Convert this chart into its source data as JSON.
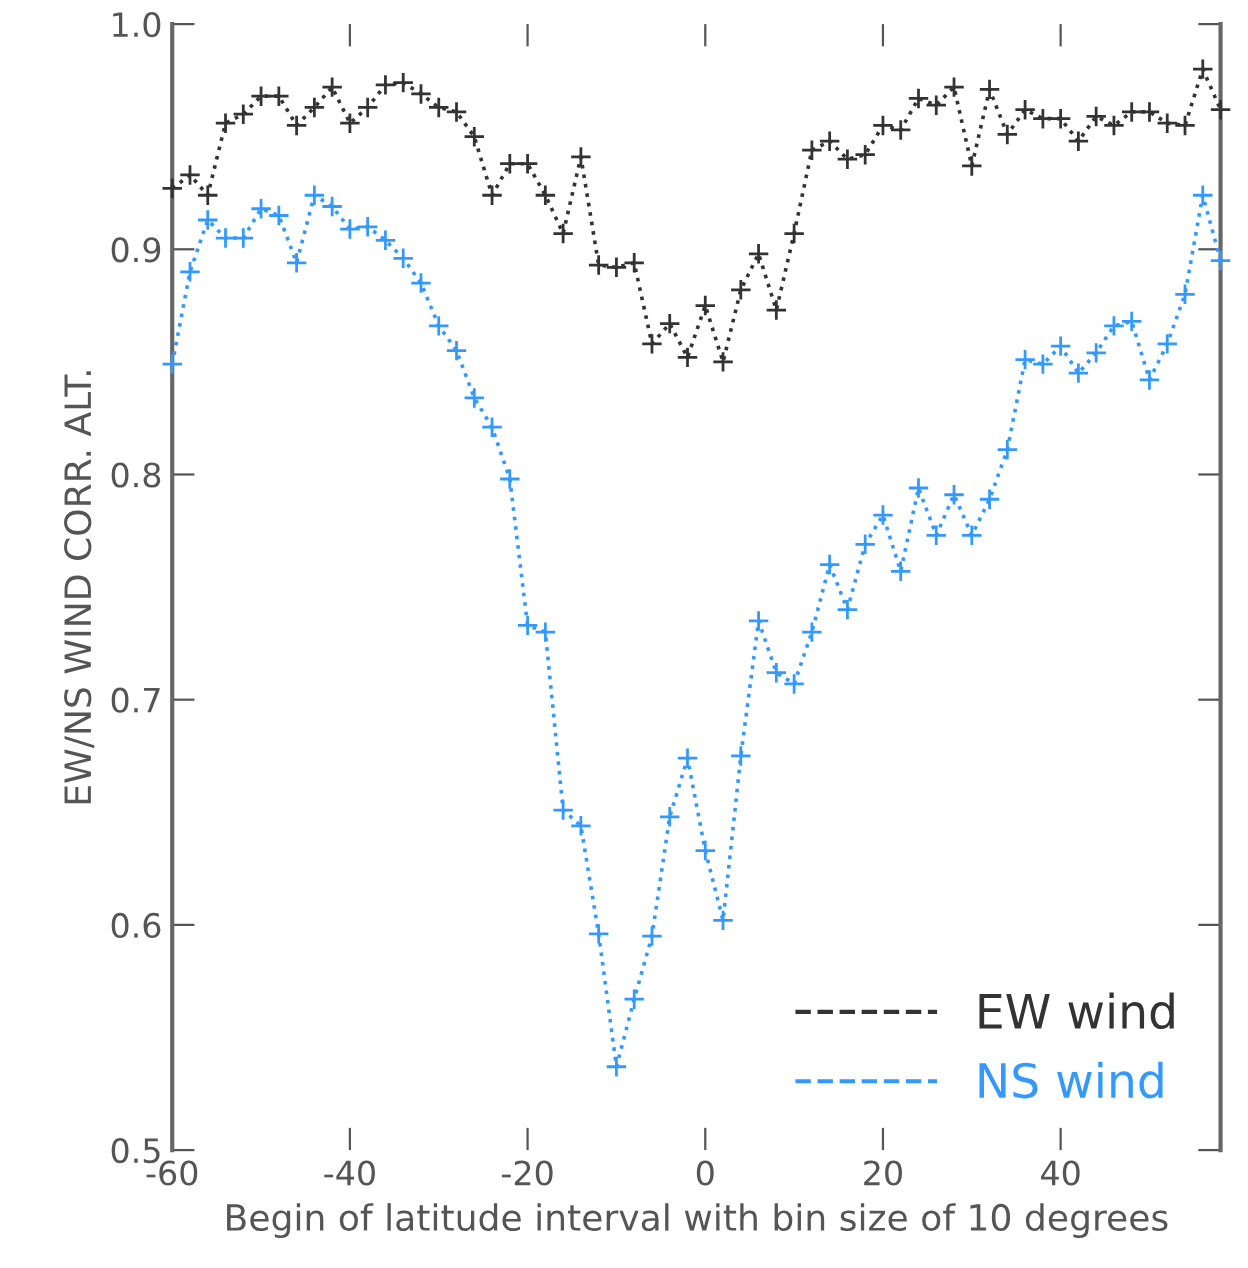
{
  "chart_data": {
    "type": "line",
    "xlabel": "Begin of latitude interval with bin size of 10 degrees",
    "ylabel": "EW/NS WIND CORR. ALT.",
    "x": [
      -60,
      -58,
      -56,
      -54,
      -52,
      -50,
      -48,
      -46,
      -44,
      -42,
      -40,
      -38,
      -36,
      -34,
      -32,
      -30,
      -28,
      -26,
      -24,
      -22,
      -20,
      -18,
      -16,
      -14,
      -12,
      -10,
      -8,
      -6,
      -4,
      -2,
      0,
      2,
      4,
      6,
      8,
      10,
      12,
      14,
      16,
      18,
      20,
      22,
      24,
      26,
      28,
      30,
      32,
      34,
      36,
      38,
      40,
      42,
      44,
      46,
      48,
      50,
      52,
      54,
      56,
      58
    ],
    "series": [
      {
        "name": "EW wind",
        "color": "#333333",
        "values": [
          0.927,
          0.933,
          0.924,
          0.956,
          0.96,
          0.968,
          0.968,
          0.955,
          0.963,
          0.972,
          0.956,
          0.963,
          0.973,
          0.974,
          0.969,
          0.963,
          0.961,
          0.95,
          0.924,
          0.938,
          0.938,
          0.924,
          0.907,
          0.941,
          0.893,
          0.892,
          0.894,
          0.858,
          0.867,
          0.852,
          0.875,
          0.85,
          0.882,
          0.898,
          0.873,
          0.907,
          0.944,
          0.948,
          0.94,
          0.942,
          0.955,
          0.953,
          0.967,
          0.964,
          0.972,
          0.937,
          0.971,
          0.951,
          0.962,
          0.958,
          0.958,
          0.948,
          0.959,
          0.955,
          0.961,
          0.961,
          0.956,
          0.955,
          0.98,
          0.962
        ]
      },
      {
        "name": "NS wind",
        "color": "#3399ff",
        "values": [
          0.849,
          0.89,
          0.913,
          0.905,
          0.905,
          0.918,
          0.915,
          0.894,
          0.924,
          0.919,
          0.909,
          0.91,
          0.904,
          0.896,
          0.885,
          0.866,
          0.855,
          0.834,
          0.821,
          0.798,
          0.733,
          0.73,
          0.651,
          0.644,
          0.596,
          0.537,
          0.567,
          0.595,
          0.648,
          0.674,
          0.633,
          0.602,
          0.675,
          0.735,
          0.712,
          0.707,
          0.73,
          0.76,
          0.74,
          0.769,
          0.782,
          0.757,
          0.794,
          0.773,
          0.791,
          0.773,
          0.789,
          0.811,
          0.851,
          0.849,
          0.857,
          0.845,
          0.854,
          0.866,
          0.868,
          0.842,
          0.858,
          0.88,
          0.924,
          0.895
        ]
      }
    ],
    "xlim": [
      -60,
      58
    ],
    "xticks": [
      -60,
      -40,
      -20,
      0,
      20,
      40
    ],
    "ylim": [
      0.5,
      1.0
    ],
    "yticks": [
      0.5,
      0.6,
      0.7,
      0.8,
      0.9,
      {
        "value": 1.0,
        "label": "1.0"
      }
    ],
    "grid": false,
    "legend": "bottom right",
    "marker": "cross",
    "line_style": "dotted"
  }
}
